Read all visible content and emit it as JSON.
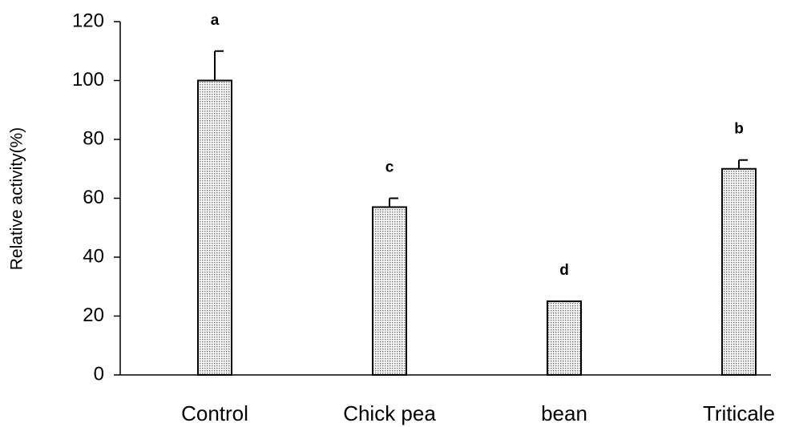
{
  "chart_data": {
    "type": "bar",
    "ylabel": "Relative activity(%)",
    "categories": [
      "Control",
      "Chick pea",
      "bean",
      "Triticale"
    ],
    "values": [
      100,
      57,
      25,
      70
    ],
    "errors": [
      10,
      3,
      0,
      3
    ],
    "annotations": [
      "a",
      "c",
      "d",
      "b"
    ],
    "color": "#d9d9d9",
    "ylim": [
      0,
      120
    ],
    "yticks": [
      0,
      20,
      40,
      60,
      80,
      100,
      120
    ],
    "grid": false
  }
}
